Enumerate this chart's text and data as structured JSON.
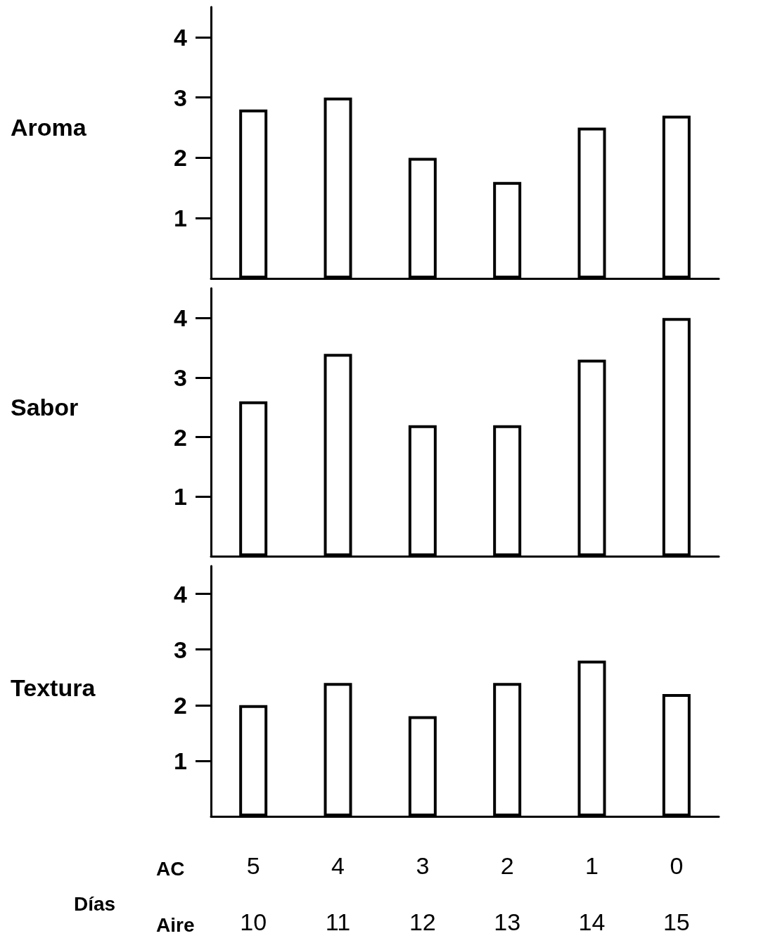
{
  "chart_data": [
    {
      "type": "bar",
      "ylabel": "Aroma",
      "categories": [
        null,
        null,
        null,
        null,
        null,
        null
      ],
      "values": [
        2.8,
        3.0,
        2.0,
        1.6,
        2.5,
        2.7
      ],
      "color": "#ffffff",
      "ylim": [
        0,
        4.5
      ],
      "yticks": [
        1,
        2,
        3,
        4
      ],
      "tick_labels": "y",
      "grid": false
    },
    {
      "type": "bar",
      "ylabel": "Sabor",
      "categories": [
        null,
        null,
        null,
        null,
        null,
        null
      ],
      "values": [
        2.6,
        3.4,
        2.2,
        2.2,
        3.3,
        4.0
      ],
      "color": "#ffffff",
      "ylim": [
        0,
        4.5
      ],
      "yticks": [
        1,
        2,
        3,
        4
      ],
      "tick_labels": "y",
      "grid": false
    },
    {
      "type": "bar",
      "ylabel": "Textura",
      "xlabel": "Días",
      "annotations": [
        "AC",
        "Aire"
      ],
      "categories": [
        "5\n10",
        "4\n11",
        "3\n12",
        "2\n13",
        "1\n14",
        "0\n15"
      ],
      "values": [
        2.0,
        2.4,
        1.8,
        2.4,
        2.8,
        2.2
      ],
      "color": "#ffffff",
      "ylim": [
        0,
        4.5
      ],
      "yticks": [
        1,
        2,
        3,
        4
      ],
      "grid": false
    }
  ]
}
